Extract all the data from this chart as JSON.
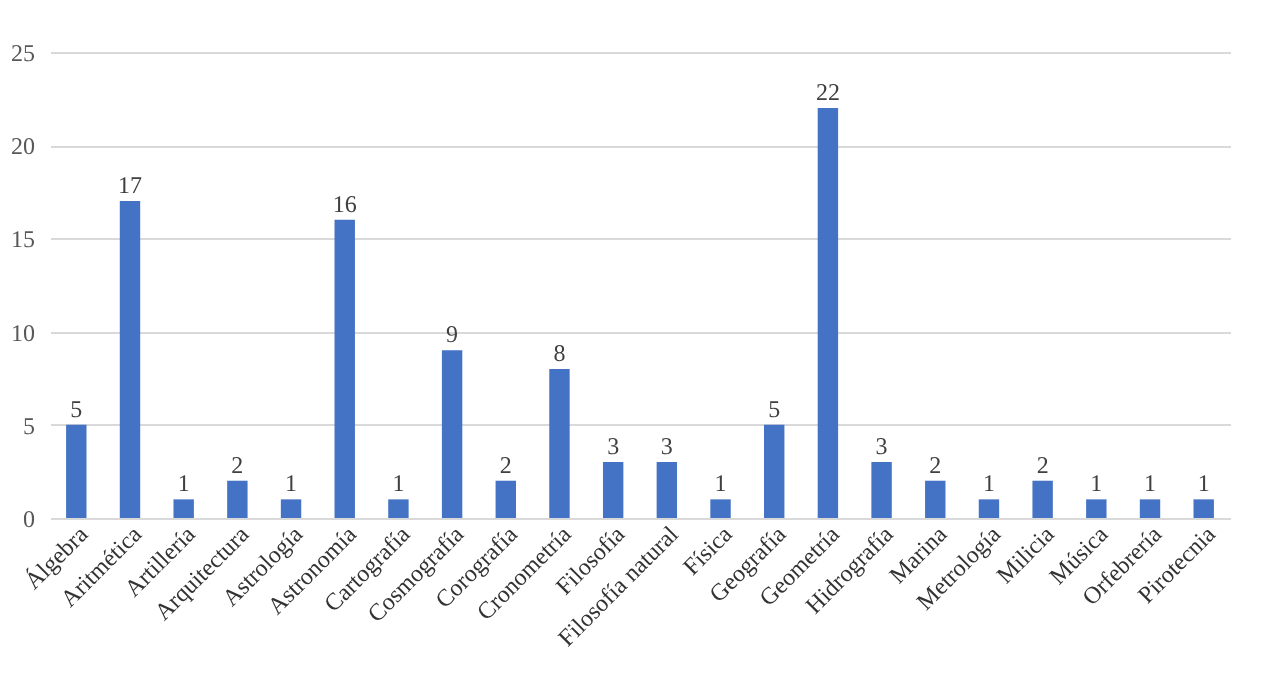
{
  "chart_data": {
    "type": "bar",
    "categories": [
      "Álgebra",
      "Aritmética",
      "Artillería",
      "Arquitectura",
      "Astrología",
      "Astronomía",
      "Cartografía",
      "Cosmografía",
      "Corografía",
      "Cronometría",
      "Filosofía",
      "Filosofía natural",
      "Física",
      "Geografía",
      "Geometría",
      "Hidrografía",
      "Marina",
      "Metrología",
      "Milicia",
      "Música",
      "Orfebrería",
      "Pirotecnia"
    ],
    "values": [
      5,
      17,
      1,
      2,
      1,
      16,
      1,
      9,
      2,
      8,
      3,
      3,
      1,
      5,
      22,
      3,
      2,
      1,
      2,
      1,
      1,
      1
    ],
    "color": "#4472c4",
    "ylim": [
      0,
      25
    ],
    "yticks": [
      0,
      5,
      10,
      15,
      20,
      25
    ],
    "grid": "y",
    "data_labels": true
  }
}
